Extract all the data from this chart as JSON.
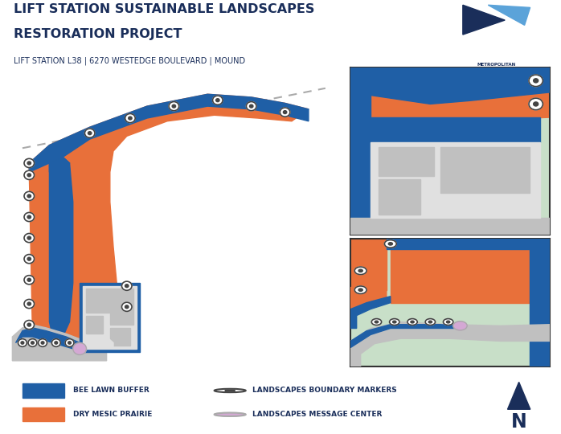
{
  "bg_color": "#c8dfc8",
  "header_bg": "#ffffff",
  "title_line1": "LIFT STATION SUSTAINABLE LANDSCAPES",
  "title_line2": "RESTORATION PROJECT",
  "subtitle": "LIFT STATION L38 | 6270 WESTEDGE BOULEVARD | MOUND",
  "title_color": "#1a2e5a",
  "orange_color": "#e8703a",
  "blue_color": "#1f5fa6",
  "road_color": "#c0c0c0",
  "marker_color": "#444444",
  "message_center_color": "#d4a8d4",
  "dashed_line_color": "#aaaaaa",
  "building_light": "#e0e0e0",
  "building_med": "#c0c0c0",
  "building_dark": "#a8a8a8"
}
